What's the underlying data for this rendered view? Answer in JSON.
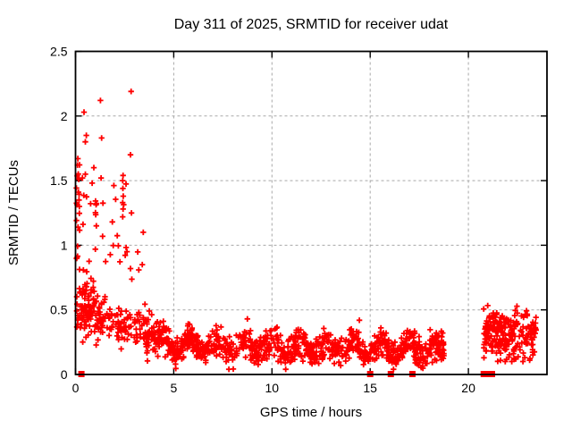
{
  "chart_data": {
    "type": "scatter",
    "title": "Day 311 of 2025, SRMTID for receiver udat",
    "xlabel": "GPS time / hours",
    "ylabel": "SRMTID / TECUs",
    "xlim": [
      0,
      24
    ],
    "ylim": [
      0,
      2.5
    ],
    "xticks": [
      0,
      5,
      10,
      15,
      20
    ],
    "yticks": [
      0,
      0.5,
      1,
      1.5,
      2,
      2.5
    ],
    "grid": true,
    "grid_color": "#a8a8a8",
    "border_color": "#000000",
    "marker": {
      "shape": "plus",
      "color": "#ff0000",
      "size": 7
    },
    "seed": 1311,
    "clusters": [
      {
        "name": "left-edge-column",
        "x": [
          0.03,
          0.22
        ],
        "n": 30,
        "uniform": [
          0.3,
          1.7
        ]
      },
      {
        "name": "morning-core",
        "x": [
          0.22,
          1.3
        ],
        "n": 100,
        "mean": [
          0.52,
          0.44
        ],
        "sd": 0.12,
        "clip": [
          0.2,
          1.0
        ]
      },
      {
        "name": "morning-high-scatter",
        "x": [
          0.25,
          3.3
        ],
        "n": 34,
        "uniform": [
          0.72,
          1.62
        ]
      },
      {
        "name": "morning-transition",
        "x": [
          1.3,
          4.3
        ],
        "n": 160,
        "mean": [
          0.44,
          0.26
        ],
        "sd": 0.08,
        "clip": [
          0.1,
          0.8
        ]
      },
      {
        "name": "daytime-band",
        "x": [
          4.3,
          18.75
        ],
        "n": 950,
        "mean": [
          0.23,
          0.19
        ],
        "sd": 0.055,
        "wobble": {
          "amp": 0.05,
          "freq": 4.5,
          "phase": 0.5
        },
        "clip": [
          0.04,
          0.44
        ]
      },
      {
        "name": "evening-cluster-a",
        "x": [
          20.78,
          21.75
        ],
        "n": 115,
        "mean": [
          0.34,
          0.3
        ],
        "sd": 0.1,
        "clip": [
          0.07,
          0.57
        ]
      },
      {
        "name": "evening-cluster-b",
        "x": [
          21.75,
          23.45
        ],
        "n": 125,
        "mean": [
          0.3,
          0.33
        ],
        "sd": 0.1,
        "clip": [
          0.1,
          0.57
        ]
      }
    ],
    "outliers": [
      [
        0.43,
        2.03
      ],
      [
        1.27,
        2.12
      ],
      [
        2.83,
        2.19
      ],
      [
        0.5,
        1.8
      ],
      [
        0.55,
        1.85
      ],
      [
        1.33,
        1.83
      ],
      [
        2.8,
        1.7
      ],
      [
        0.1,
        1.62
      ],
      [
        0.12,
        1.67
      ],
      [
        0.35,
        1.52
      ],
      [
        0.5,
        1.55
      ],
      [
        1.3,
        1.52
      ],
      [
        2.4,
        1.22
      ],
      [
        2.42,
        1.28
      ],
      [
        2.4,
        1.33
      ],
      [
        2.43,
        1.38
      ],
      [
        2.41,
        1.44
      ],
      [
        2.4,
        1.5
      ],
      [
        2.42,
        1.54
      ],
      [
        2.85,
        1.25
      ],
      [
        3.45,
        1.1
      ],
      [
        2.62,
        0.95
      ],
      [
        3.4,
        0.85
      ],
      [
        8.75,
        0.43
      ],
      [
        14.45,
        0.42
      ]
    ],
    "zero_markers": {
      "shape": "filled-square",
      "color": "#ff0000",
      "size": 7,
      "x": [
        0.3,
        15.0,
        16.05,
        17.15,
        20.78,
        20.92,
        21.06,
        21.2
      ]
    }
  }
}
